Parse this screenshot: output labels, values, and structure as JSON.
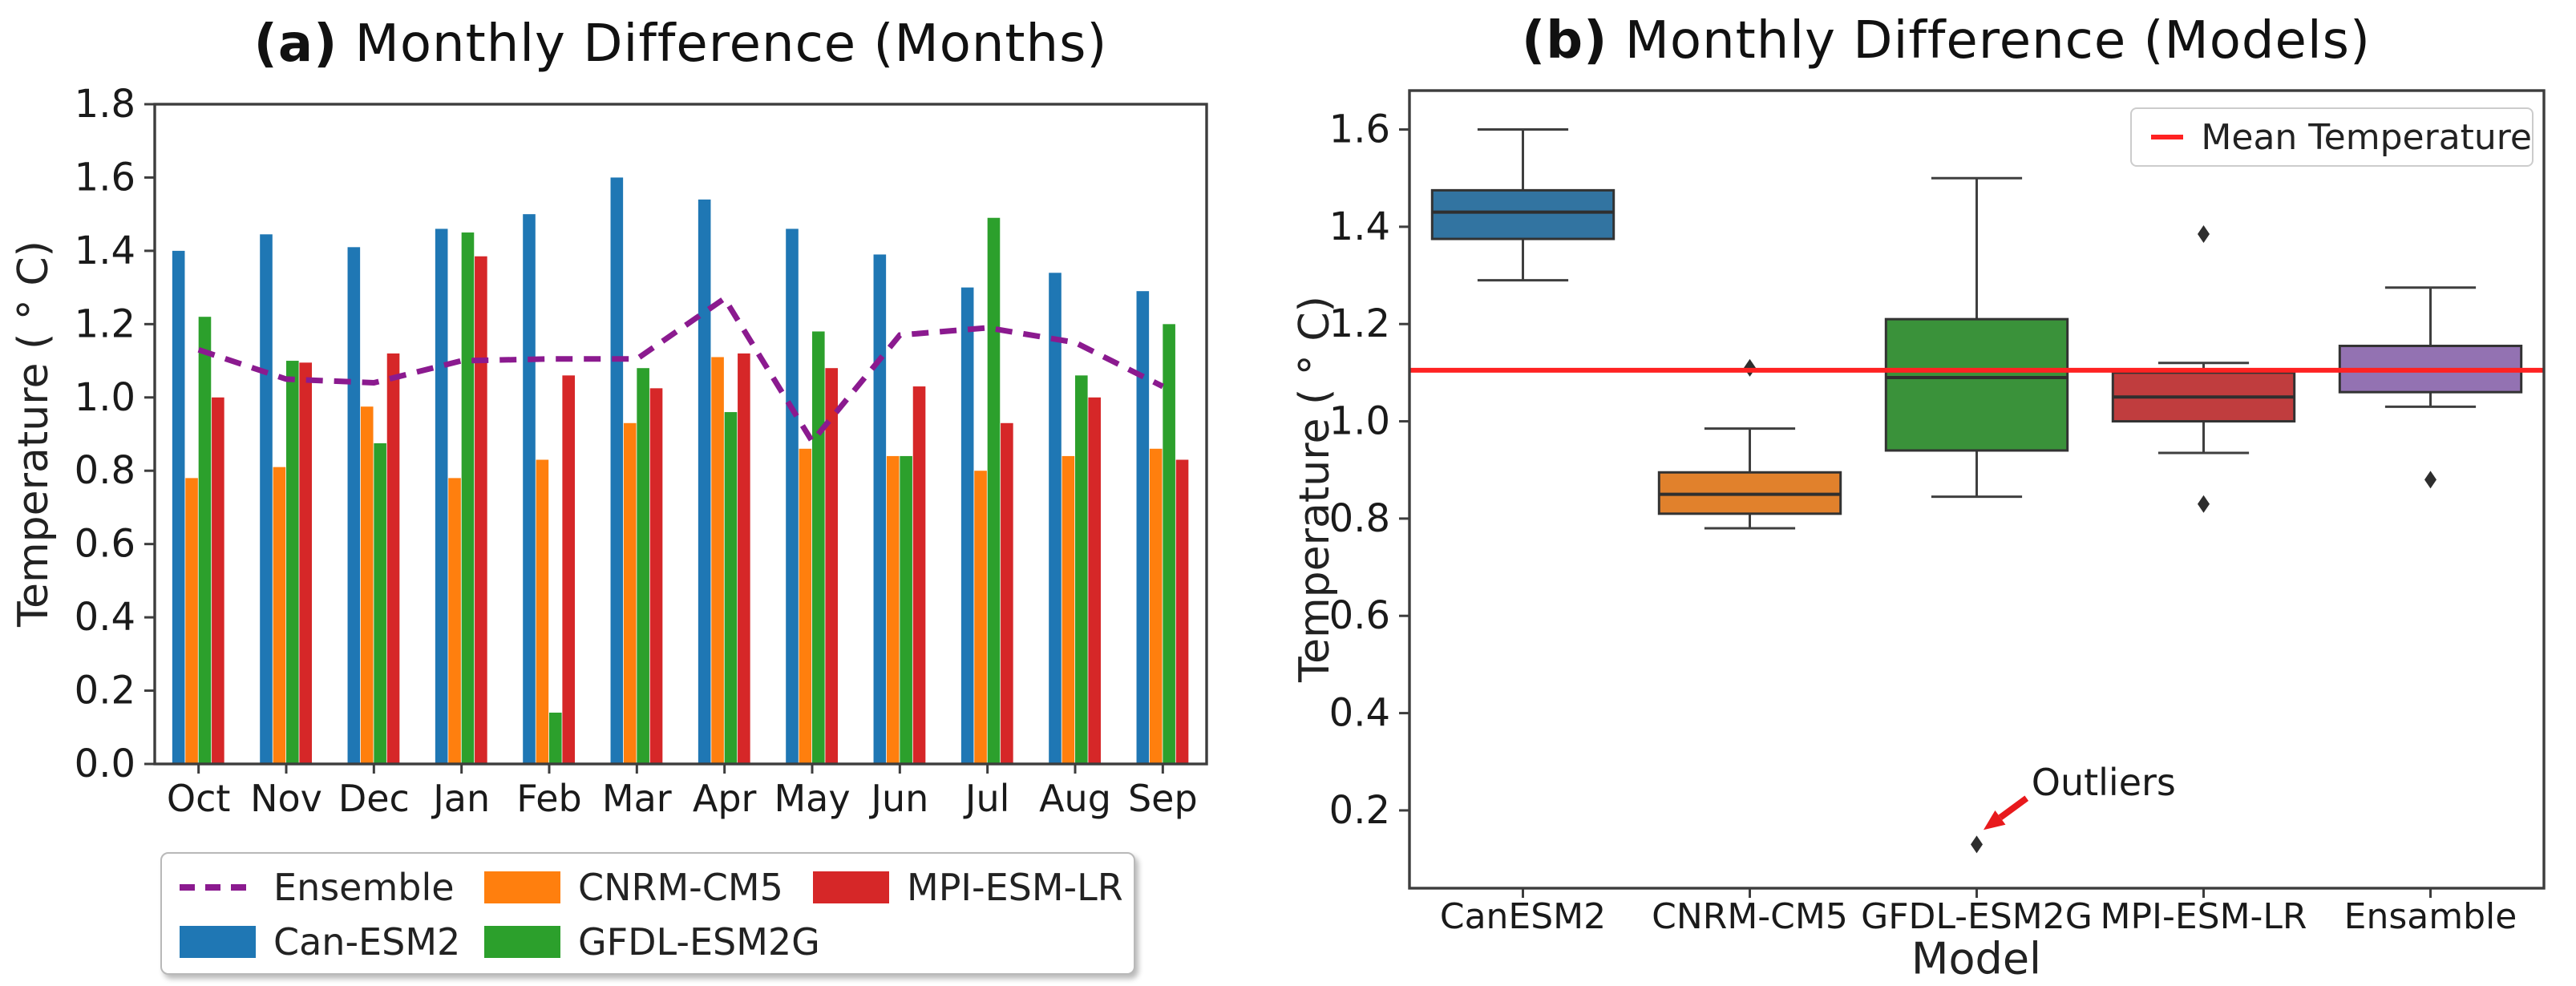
{
  "chart_data": [
    {
      "type": "bar",
      "panel": "a",
      "title_prefix": "(a)",
      "title_rest": " Monthly Difference (Months)",
      "ylabel": "Temperature ( ° C)",
      "xlabel": "",
      "categories": [
        "Oct",
        "Nov",
        "Dec",
        "Jan",
        "Feb",
        "Mar",
        "Apr",
        "May",
        "Jun",
        "Jul",
        "Aug",
        "Sep"
      ],
      "ylim": [
        0.0,
        1.8
      ],
      "yticks": [
        "0.0",
        "0.2",
        "0.4",
        "0.6",
        "0.8",
        "1.0",
        "1.2",
        "1.4",
        "1.6",
        "1.8"
      ],
      "grid": false,
      "series": [
        {
          "name": "Can-ESM2",
          "color": "#1f77b4",
          "values": [
            1.4,
            1.445,
            1.41,
            1.46,
            1.5,
            1.6,
            1.54,
            1.46,
            1.39,
            1.3,
            1.34,
            1.29
          ]
        },
        {
          "name": "CNRM-CM5",
          "color": "#ff7f0e",
          "values": [
            0.78,
            0.81,
            0.975,
            0.78,
            0.83,
            0.93,
            1.11,
            0.86,
            0.84,
            0.8,
            0.84,
            0.86
          ]
        },
        {
          "name": "GFDL-ESM2G",
          "color": "#2ca02c",
          "values": [
            1.22,
            1.1,
            0.875,
            1.45,
            0.14,
            1.08,
            0.96,
            1.18,
            0.84,
            1.49,
            1.06,
            1.2
          ]
        },
        {
          "name": "MPI-ESM-LR",
          "color": "#d62728",
          "values": [
            1.0,
            1.095,
            1.12,
            1.385,
            1.06,
            1.025,
            1.12,
            1.08,
            1.03,
            0.93,
            1.0,
            0.83
          ]
        }
      ],
      "line_series": {
        "name": "Ensemble",
        "color": "#8b1a8f",
        "style": "dashed",
        "values": [
          1.13,
          1.05,
          1.04,
          1.1,
          1.105,
          1.105,
          1.27,
          0.88,
          1.17,
          1.19,
          1.15,
          1.03
        ]
      },
      "legend": {
        "position": "below",
        "entries": [
          {
            "label": "Ensemble",
            "swatch": "dashed-line",
            "color": "#8b1a8f",
            "row": 0,
            "col": 0
          },
          {
            "label": "CNRM-CM5",
            "swatch": "patch",
            "color": "#ff7f0e",
            "row": 0,
            "col": 1
          },
          {
            "label": "MPI-ESM-LR",
            "swatch": "patch",
            "color": "#d62728",
            "row": 0,
            "col": 2
          },
          {
            "label": "Can-ESM2",
            "swatch": "patch",
            "color": "#1f77b4",
            "row": 1,
            "col": 0
          },
          {
            "label": "GFDL-ESM2G",
            "swatch": "patch",
            "color": "#2ca02c",
            "row": 1,
            "col": 1
          }
        ]
      }
    },
    {
      "type": "box",
      "panel": "b",
      "title_prefix": "(b)",
      "title_rest": " Monthly Difference (Models)",
      "ylabel": "Temperature ( ° C)",
      "xlabel": "Model",
      "categories": [
        "CanESM2",
        "CNRM-CM5",
        "GFDL-ESM2G",
        "MPI-ESM-LR",
        "Ensamble"
      ],
      "ylim": [
        0.04,
        1.68
      ],
      "yticks": [
        "0.2",
        "0.4",
        "0.6",
        "0.8",
        "1.0",
        "1.2",
        "1.4",
        "1.6"
      ],
      "grid": false,
      "boxes": [
        {
          "name": "CanESM2",
          "color": "#3274a1",
          "whisker_low": 1.29,
          "q1": 1.375,
          "median": 1.43,
          "q3": 1.475,
          "whisker_high": 1.6,
          "outliers": []
        },
        {
          "name": "CNRM-CM5",
          "color": "#e1812c",
          "whisker_low": 0.78,
          "q1": 0.81,
          "median": 0.85,
          "q3": 0.895,
          "whisker_high": 0.985,
          "outliers": [
            1.11
          ]
        },
        {
          "name": "GFDL-ESM2G",
          "color": "#3a923a",
          "whisker_low": 0.845,
          "q1": 0.94,
          "median": 1.09,
          "q3": 1.21,
          "whisker_high": 1.5,
          "outliers": [
            0.13
          ]
        },
        {
          "name": "MPI-ESM-LR",
          "color": "#c03d3e",
          "whisker_low": 0.935,
          "q1": 1.0,
          "median": 1.05,
          "q3": 1.1,
          "whisker_high": 1.12,
          "outliers": [
            1.385,
            0.83
          ]
        },
        {
          "name": "Ensamble",
          "color": "#9372b2",
          "whisker_low": 1.03,
          "q1": 1.06,
          "median": 1.105,
          "q3": 1.155,
          "whisker_high": 1.275,
          "outliers": [
            0.88
          ]
        }
      ],
      "mean_line": {
        "label": "Mean Temperature",
        "value": 1.105,
        "color": "#ff2222"
      },
      "legend": {
        "position": "upper-right"
      },
      "annotation": {
        "label": "Outliers",
        "color": "#1a1a1a",
        "arrow_color": "#e8191c",
        "text_xy": [
          2.72,
          0.225
        ],
        "arrow_tip_xy": [
          2.53,
          0.16
        ]
      }
    }
  ]
}
